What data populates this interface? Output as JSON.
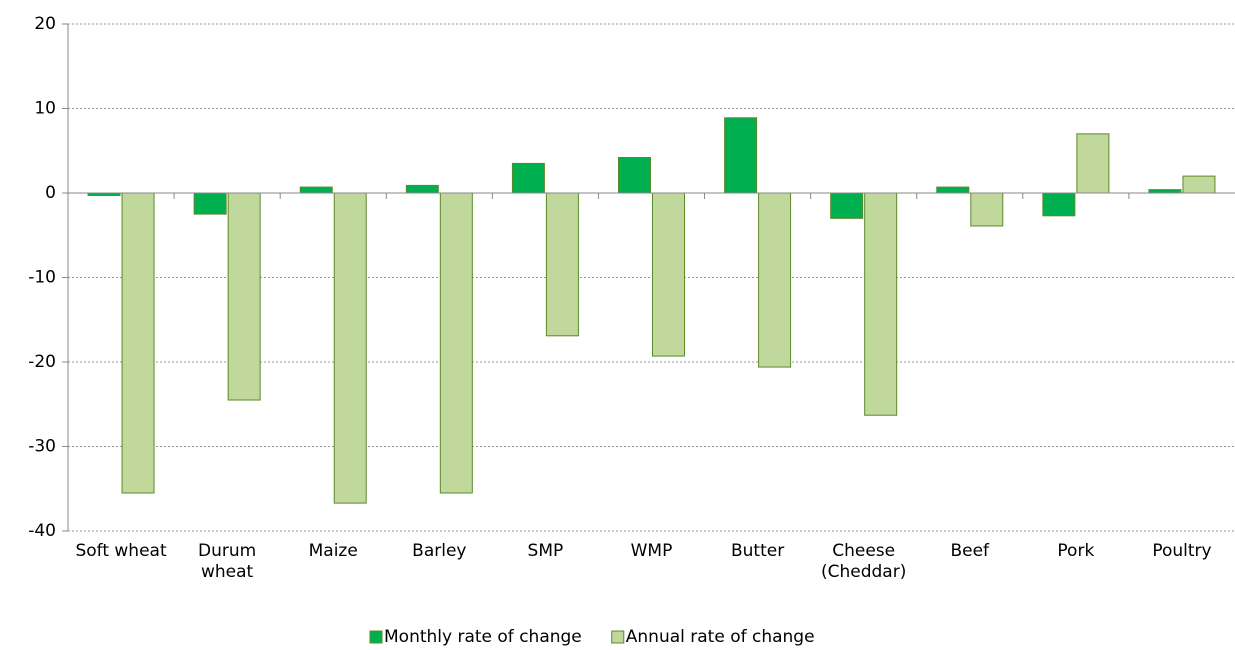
{
  "chart_data": {
    "type": "bar",
    "categories": [
      "Soft wheat",
      "Durum wheat",
      "Maize",
      "Barley",
      "SMP",
      "WMP",
      "Butter",
      "Cheese (Cheddar)",
      "Beef",
      "Pork",
      "Poultry"
    ],
    "series": [
      {
        "name": "Monthly rate of change",
        "color": "#00b050",
        "values": [
          -0.3,
          -2.5,
          0.7,
          0.9,
          3.5,
          4.2,
          8.9,
          -3.0,
          0.7,
          -2.7,
          0.4
        ]
      },
      {
        "name": "Annual rate of change",
        "color": "#c0d89c",
        "values": [
          -35.5,
          -24.5,
          -36.7,
          -35.5,
          -16.9,
          -19.3,
          -20.6,
          -26.3,
          -3.9,
          7.0,
          2.0
        ]
      }
    ],
    "ylim": [
      -40,
      20
    ],
    "yticks": [
      -40,
      -30,
      -20,
      -10,
      0,
      10,
      20
    ],
    "grid": true,
    "legend": "bottom"
  }
}
